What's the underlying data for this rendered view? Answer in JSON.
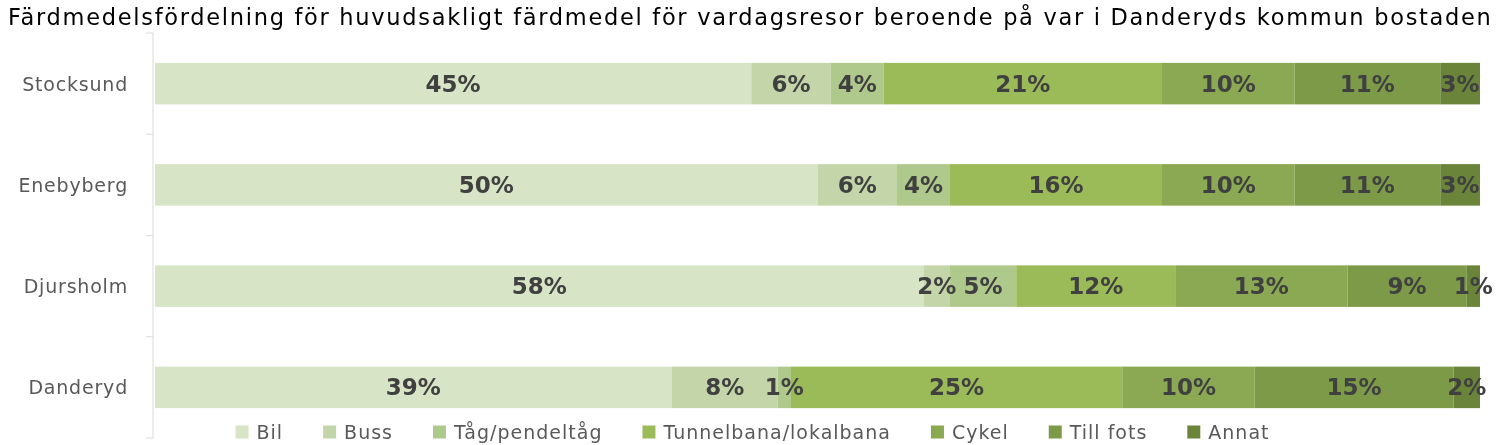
{
  "chart_data": {
    "type": "bar",
    "orientation": "horizontal",
    "stacked": true,
    "title": "Färdmedelsfördelning för huvudsakligt färdmedel för vardagsresor beroende på var i Danderyds kommun bostaden",
    "categories": [
      "Stocksund",
      "Enebyberg",
      "Djursholm",
      "Danderyd"
    ],
    "xlim": [
      0,
      100
    ],
    "tick_labels": "y",
    "legend": "bottom",
    "series": [
      {
        "name": "Bil",
        "color": "#d8e4c6",
        "values": [
          45,
          50,
          58,
          39
        ],
        "value_labels": [
          "45%",
          "50%",
          "58%",
          "39%"
        ]
      },
      {
        "name": "Buss",
        "color": "#c4d6a9",
        "values": [
          6,
          6,
          2,
          8
        ],
        "value_labels": [
          "6%",
          "6%",
          "2%",
          "8%"
        ]
      },
      {
        "name": "Tåg/pendeltåg",
        "color": "#afc88b",
        "values": [
          4,
          4,
          5,
          1
        ],
        "value_labels": [
          "4%",
          "4%",
          "5%",
          "1%"
        ]
      },
      {
        "name": "Tunnelbana/lokalbana",
        "color": "#9bbb59",
        "values": [
          21,
          16,
          12,
          25
        ],
        "value_labels": [
          "21%",
          "16%",
          "12%",
          "25%"
        ]
      },
      {
        "name": "Cykel",
        "color": "#8ba952",
        "values": [
          10,
          10,
          13,
          10
        ],
        "value_labels": [
          "10%",
          "10%",
          "13%",
          "10%"
        ]
      },
      {
        "name": "Till fots",
        "color": "#7c9a48",
        "values": [
          11,
          11,
          9,
          15
        ],
        "value_labels": [
          "11%",
          "11%",
          "9%",
          "15%"
        ]
      },
      {
        "name": "Annat",
        "color": "#6a853a",
        "values": [
          3,
          3,
          1,
          2
        ],
        "value_labels": [
          "3%",
          "3%",
          "1%",
          "2%"
        ]
      }
    ]
  }
}
